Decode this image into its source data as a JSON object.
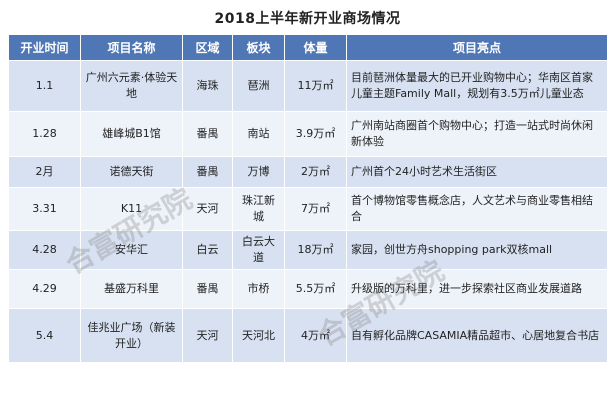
{
  "title": "2018上半年新开业商场情况",
  "headers": [
    "开业时间",
    "项目名称",
    "区域",
    "板块",
    "体量",
    "项目亮点"
  ],
  "rows": [
    {
      "date": "1.1",
      "name": "广州六元素·体验天地",
      "district": "海珠",
      "block": "琶洲",
      "size": "11万㎡",
      "highlight": "目前琶洲体量最大的已开业购物中心；华南区首家儿童主题Family Mall，规划有3.5万㎡儿童业态"
    },
    {
      "date": "1.28",
      "name": "雄峰城B1馆",
      "district": "番禺",
      "block": "南站",
      "size": "3.9万㎡",
      "highlight": "广州南站商圈首个购物中心；打造一站式时尚休闲新体验"
    },
    {
      "date": "2月",
      "name": "诺德天街",
      "district": "番禺",
      "block": "万博",
      "size": "2万㎡",
      "highlight": "广州首个24小时艺术生活街区"
    },
    {
      "date": "3.31",
      "name": "K11",
      "district": "天河",
      "block": "珠江新城",
      "size": "7万㎡",
      "highlight": "首个博物馆零售概念店，人文艺术与商业零售相结合"
    },
    {
      "date": "4.28",
      "name": "安华汇",
      "district": "白云",
      "block": "白云大道",
      "size": "18万㎡",
      "highlight": "家园，创世方舟shopping park双核mall"
    },
    {
      "date": "4.29",
      "name": "基盛万科里",
      "district": "番禺",
      "block": "市桥",
      "size": "5.5万㎡",
      "highlight": "升级版的万科里，进一步探索社区商业发展道路"
    },
    {
      "date": "5.4",
      "name": "佳兆业广场（新装开业）",
      "district": "天河",
      "block": "天河北",
      "size": "4万㎡",
      "highlight": "自有孵化品牌CASAMIA精品超市、心居地复合书店"
    }
  ],
  "watermark": "合富研究院"
}
